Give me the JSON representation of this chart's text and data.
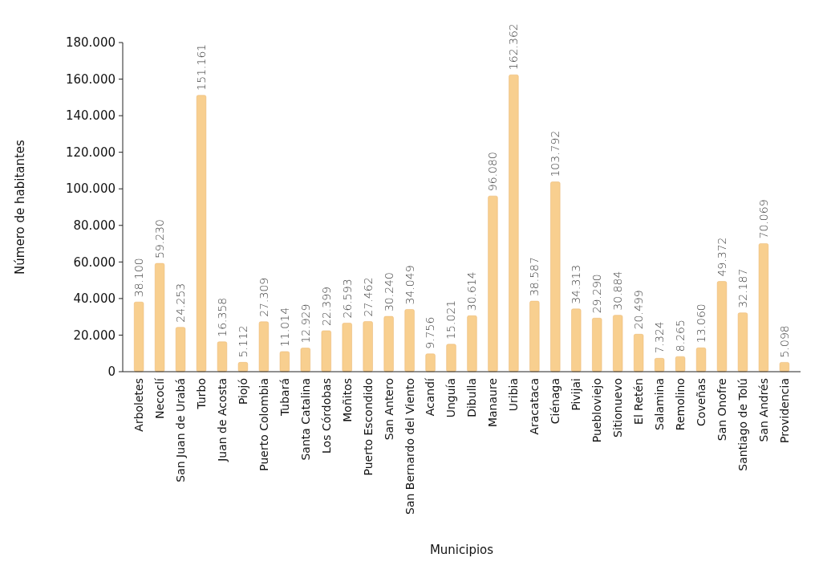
{
  "chart_data": {
    "type": "bar",
    "xlabel": "Municipios",
    "ylabel": "Número de habitantes",
    "categories": [
      "Arboletes",
      "Necoclí",
      "San Juan de Urabá",
      "Turbo",
      "Juan de Acosta",
      "Piojó",
      "Puerto Colombia",
      "Tubará",
      "Santa Catalina",
      "Los Córdobas",
      "Moñitos",
      "Puerto Escondido",
      "San Antero",
      "San Bernardo del Viento",
      "Acandí",
      "Unguía",
      "Dibulla",
      "Manaure",
      "Uribia",
      "Aracataca",
      "Ciénaga",
      "Pivijai",
      "Puebloviejo",
      "Sitionuevo",
      "El Retén",
      "Salamina",
      "Remolino",
      "Coveñas",
      "San Onofre",
      "Santiago de Tolú",
      "San Andrés",
      "Providencia"
    ],
    "values": [
      38100,
      59230,
      24253,
      151161,
      16358,
      5112,
      27309,
      11014,
      12929,
      22399,
      26593,
      27462,
      30240,
      34049,
      9756,
      15021,
      30614,
      96080,
      162362,
      38587,
      103792,
      34313,
      29290,
      30884,
      20499,
      7324,
      8265,
      13060,
      49372,
      32187,
      70069,
      5098
    ],
    "value_labels": [
      "38.100",
      "59.230",
      "24.253",
      "151.161",
      "16.358",
      "5.112",
      "27.309",
      "11.014",
      "12.929",
      "22.399",
      "26.593",
      "27.462",
      "30.240",
      "34.049",
      "9.756",
      "15.021",
      "30.614",
      "96.080",
      "162.362",
      "38.587",
      "103.792",
      "34.313",
      "29.290",
      "30.884",
      "20.499",
      "7.324",
      "8.265",
      "13.060",
      "49.372",
      "32.187",
      "70.069",
      "5.098"
    ],
    "color": "#f8cf8f",
    "ylim": [
      0,
      180000
    ],
    "yticks": [
      0,
      {
        "value": 20000,
        "label": "20.000"
      },
      {
        "value": 40000,
        "label": "40.000"
      },
      {
        "value": 60000,
        "label": "60.000"
      },
      {
        "value": 80000,
        "label": "80.000"
      },
      {
        "value": 100000,
        "label": "100.000"
      },
      {
        "value": 120000,
        "label": "120.000"
      },
      {
        "value": 140000,
        "label": "140.000"
      },
      {
        "value": 160000,
        "label": "160.000"
      },
      {
        "value": 180000,
        "label": "180.000"
      }
    ],
    "grid": false
  }
}
